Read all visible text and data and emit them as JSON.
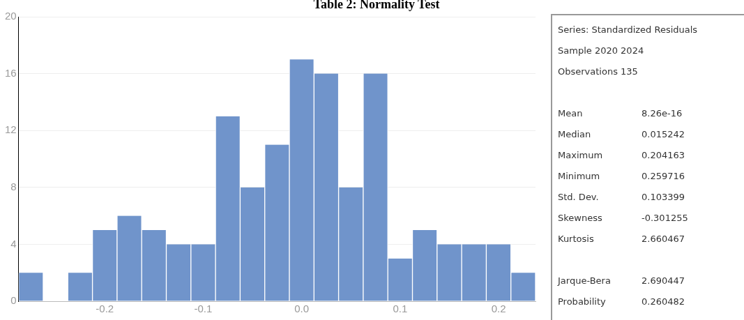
{
  "chart_data": {
    "type": "histogram",
    "title": "Table 2: Normality Test",
    "bins": [
      -0.2875,
      -0.2625,
      -0.2375,
      -0.2125,
      -0.1875,
      -0.1625,
      -0.1375,
      -0.1125,
      -0.0875,
      -0.0625,
      -0.0375,
      -0.0125,
      0.0125,
      0.0375,
      0.0625,
      0.0875,
      0.1125,
      0.1375,
      0.1625,
      0.1875,
      0.2125,
      0.2375
    ],
    "values": [
      2,
      0,
      2,
      5,
      6,
      5,
      4,
      4,
      13,
      8,
      11,
      17,
      16,
      8,
      16,
      3,
      5,
      4,
      4,
      4,
      2
    ],
    "color": "#7094cb",
    "xlim": [
      -0.2875,
      0.2375
    ],
    "xticks": [
      {
        "value": -0.2,
        "label": "-0.2"
      },
      {
        "value": -0.1,
        "label": "-0.1"
      },
      {
        "value": 0,
        "label": "0.0"
      },
      {
        "value": 0.1,
        "label": "0.1"
      },
      {
        "value": 0.2,
        "label": "0.2"
      }
    ],
    "ylim": [
      0,
      20
    ],
    "yticks": [
      0,
      4,
      8,
      12,
      16,
      20
    ],
    "grid": "y",
    "annotations": [
      "Series: Standardized Residuals",
      "Sample 2020 2024",
      "Observations 135",
      "Mean\t8.26e-16",
      "Median\t0.015242",
      "Maximum\t0.204163",
      "Minimum\t0.259716",
      "Std. Dev.\t0.103399",
      "Skewness\t-0.301255",
      "Kurtosis\t2.660467",
      "Jarque-Bera\t2.690447",
      "Probability\t0.260482"
    ]
  }
}
